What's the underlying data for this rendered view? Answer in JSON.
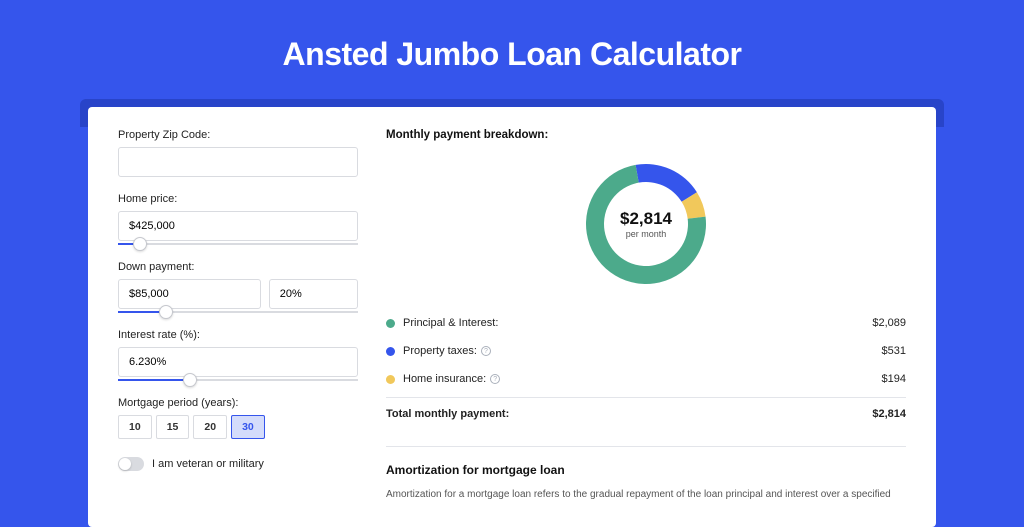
{
  "page": {
    "title": "Ansted Jumbo Loan Calculator",
    "bg_color": "#3555ec",
    "shadow_color": "#2844c9",
    "card_bg": "#ffffff"
  },
  "form": {
    "zip": {
      "label": "Property Zip Code:",
      "value": ""
    },
    "home_price": {
      "label": "Home price:",
      "value": "$425,000",
      "slider_pct": 9
    },
    "down_payment": {
      "label": "Down payment:",
      "value": "$85,000",
      "pct_value": "20%",
      "slider_pct": 20
    },
    "interest": {
      "label": "Interest rate (%):",
      "value": "6.230%",
      "slider_pct": 30
    },
    "period": {
      "label": "Mortgage period (years):",
      "options": [
        "10",
        "15",
        "20",
        "30"
      ],
      "selected": "30"
    },
    "veteran": {
      "label": "I am veteran or military",
      "checked": false
    }
  },
  "breakdown": {
    "heading": "Monthly payment breakdown:",
    "donut": {
      "amount": "$2,814",
      "sub": "per month",
      "slices": [
        {
          "label": "principal",
          "value": 2089,
          "color": "#4caa8b",
          "pct": 74.2
        },
        {
          "label": "taxes",
          "value": 531,
          "color": "#3555ec",
          "pct": 18.9
        },
        {
          "label": "insurance",
          "value": 194,
          "color": "#f1c85b",
          "pct": 6.9
        }
      ],
      "ring_width": 18,
      "background_color": "#ffffff"
    },
    "rows": [
      {
        "dot": "#4caa8b",
        "label": "Principal & Interest:",
        "value": "$2,089",
        "info": false
      },
      {
        "dot": "#3555ec",
        "label": "Property taxes:",
        "value": "$531",
        "info": true
      },
      {
        "dot": "#f1c85b",
        "label": "Home insurance:",
        "value": "$194",
        "info": true
      }
    ],
    "total": {
      "label": "Total monthly payment:",
      "value": "$2,814"
    }
  },
  "amortization": {
    "title": "Amortization for mortgage loan",
    "body": "Amortization for a mortgage loan refers to the gradual repayment of the loan principal and interest over a specified"
  }
}
